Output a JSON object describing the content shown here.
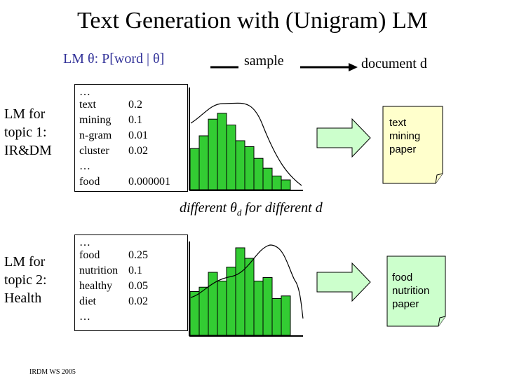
{
  "title": "Text Generation with (Unigram) LM",
  "header": {
    "lm_label": "LM θ: P[word | θ]",
    "sample_label": "sample",
    "document_label": "document d"
  },
  "topic1": {
    "label_lines": [
      "LM for",
      "topic 1:",
      "IR&DM"
    ],
    "words": [
      {
        "word": "…",
        "prob": ""
      },
      {
        "word": "text",
        "prob": "0.2"
      },
      {
        "word": "mining",
        "prob": "0.1"
      },
      {
        "word": "n-gram",
        "prob": "0.01"
      },
      {
        "word": "cluster",
        "prob": "0.02"
      },
      {
        "word": "…",
        "prob": ""
      },
      {
        "word": "food",
        "prob": "0.000001"
      }
    ],
    "doc_lines": [
      "text",
      "mining",
      "paper"
    ]
  },
  "topic2": {
    "label_lines": [
      "LM for",
      "topic 2:",
      "Health"
    ],
    "words": [
      {
        "word": "…",
        "prob": ""
      },
      {
        "word": "food",
        "prob": "0.25"
      },
      {
        "word": "nutrition",
        "prob": "0.1"
      },
      {
        "word": "healthy",
        "prob": "0.05"
      },
      {
        "word": "diet",
        "prob": "0.02"
      },
      {
        "word": "…",
        "prob": ""
      }
    ],
    "doc_lines": [
      "food",
      "nutrition",
      "paper"
    ]
  },
  "middle_text": {
    "prefix": "different θ",
    "subscript": "d",
    "suffix": " for different d"
  },
  "footer": "IRDM WS 2005",
  "colors": {
    "bar_fill": "#33cc33",
    "doc_fill": "#ffffcc",
    "arrow_fill": "#ccffcc",
    "lm_label": "#333399"
  },
  "histogram1_levels": [
    0.42,
    0.55,
    0.72,
    0.78,
    0.66,
    0.5,
    0.44,
    0.32,
    0.22,
    0.14,
    0.1
  ],
  "histogram2_levels": [
    0.5,
    0.55,
    0.72,
    0.62,
    0.78,
    1.0,
    0.88,
    0.62,
    0.66,
    0.42,
    0.45
  ]
}
